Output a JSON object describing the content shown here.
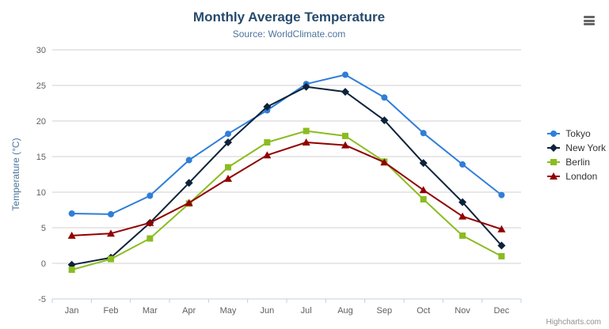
{
  "header": {
    "title": "Monthly Average Temperature",
    "subtitle": "Source: WorldClimate.com"
  },
  "credits": {
    "label": "Highcharts.com"
  },
  "chart_data": {
    "type": "line",
    "title": "Monthly Average Temperature",
    "subtitle": "Source: WorldClimate.com",
    "xlabel": "",
    "ylabel": "Temperature (°C)",
    "ylim": [
      -5,
      30
    ],
    "ytick_interval": 5,
    "grid": true,
    "legend_position": "right",
    "categories": [
      "Jan",
      "Feb",
      "Mar",
      "Apr",
      "May",
      "Jun",
      "Jul",
      "Aug",
      "Sep",
      "Oct",
      "Nov",
      "Dec"
    ],
    "series": [
      {
        "name": "Tokyo",
        "color": "#2f7ed8",
        "marker": "circle",
        "values": [
          7.0,
          6.9,
          9.5,
          14.5,
          18.2,
          21.5,
          25.2,
          26.5,
          23.3,
          18.3,
          13.9,
          9.6
        ]
      },
      {
        "name": "New York",
        "color": "#0d233a",
        "marker": "diamond",
        "values": [
          -0.2,
          0.8,
          5.7,
          11.3,
          17.0,
          22.0,
          24.8,
          24.1,
          20.1,
          14.1,
          8.6,
          2.5
        ]
      },
      {
        "name": "Berlin",
        "color": "#8bbc21",
        "marker": "square",
        "values": [
          -0.9,
          0.6,
          3.5,
          8.4,
          13.5,
          17.0,
          18.6,
          17.9,
          14.3,
          9.0,
          3.9,
          1.0
        ]
      },
      {
        "name": "London",
        "color": "#910000",
        "marker": "triangle",
        "values": [
          3.9,
          4.2,
          5.7,
          8.5,
          11.9,
          15.2,
          17.0,
          16.6,
          14.2,
          10.3,
          6.6,
          4.8
        ]
      }
    ]
  }
}
